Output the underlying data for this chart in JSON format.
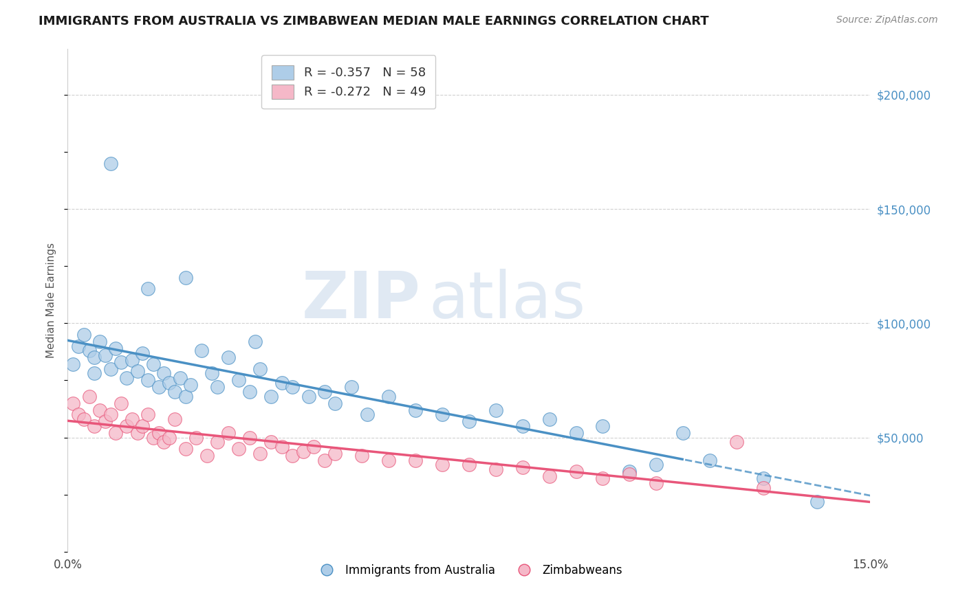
{
  "title": "IMMIGRANTS FROM AUSTRALIA VS ZIMBABWEAN MEDIAN MALE EARNINGS CORRELATION CHART",
  "source": "Source: ZipAtlas.com",
  "ylabel": "Median Male Earnings",
  "xlim": [
    0.0,
    0.15
  ],
  "ylim": [
    0,
    220000
  ],
  "y_ticks": [
    0,
    50000,
    100000,
    150000,
    200000
  ],
  "legend_label1": "R = -0.357   N = 58",
  "legend_label2": "R = -0.272   N = 49",
  "legend_label3": "Immigrants from Australia",
  "legend_label4": "Zimbabweans",
  "color_blue": "#aecde8",
  "color_pink": "#f5b8c8",
  "line_blue": "#4a90c4",
  "line_pink": "#e8567a",
  "watermark_zip": "ZIP",
  "watermark_atlas": "atlas",
  "aus_scatter_x": [
    0.001,
    0.002,
    0.003,
    0.004,
    0.005,
    0.005,
    0.006,
    0.007,
    0.008,
    0.009,
    0.01,
    0.011,
    0.012,
    0.013,
    0.014,
    0.015,
    0.016,
    0.017,
    0.018,
    0.019,
    0.02,
    0.021,
    0.022,
    0.023,
    0.025,
    0.027,
    0.028,
    0.03,
    0.032,
    0.034,
    0.036,
    0.038,
    0.04,
    0.042,
    0.045,
    0.048,
    0.05,
    0.053,
    0.056,
    0.06,
    0.065,
    0.07,
    0.075,
    0.08,
    0.085,
    0.09,
    0.095,
    0.1,
    0.105,
    0.11,
    0.115,
    0.12,
    0.13,
    0.14,
    0.008,
    0.015,
    0.022,
    0.035
  ],
  "aus_scatter_y": [
    82000,
    90000,
    95000,
    88000,
    85000,
    78000,
    92000,
    86000,
    80000,
    89000,
    83000,
    76000,
    84000,
    79000,
    87000,
    75000,
    82000,
    72000,
    78000,
    74000,
    70000,
    76000,
    68000,
    73000,
    88000,
    78000,
    72000,
    85000,
    75000,
    70000,
    80000,
    68000,
    74000,
    72000,
    68000,
    70000,
    65000,
    72000,
    60000,
    68000,
    62000,
    60000,
    57000,
    62000,
    55000,
    58000,
    52000,
    55000,
    35000,
    38000,
    52000,
    40000,
    32000,
    22000,
    170000,
    115000,
    120000,
    92000
  ],
  "zim_scatter_x": [
    0.001,
    0.002,
    0.003,
    0.004,
    0.005,
    0.006,
    0.007,
    0.008,
    0.009,
    0.01,
    0.011,
    0.012,
    0.013,
    0.014,
    0.015,
    0.016,
    0.017,
    0.018,
    0.019,
    0.02,
    0.022,
    0.024,
    0.026,
    0.028,
    0.03,
    0.032,
    0.034,
    0.036,
    0.038,
    0.04,
    0.042,
    0.044,
    0.046,
    0.048,
    0.05,
    0.055,
    0.06,
    0.065,
    0.07,
    0.075,
    0.08,
    0.085,
    0.09,
    0.095,
    0.1,
    0.105,
    0.11,
    0.125,
    0.13
  ],
  "zim_scatter_y": [
    65000,
    60000,
    58000,
    68000,
    55000,
    62000,
    57000,
    60000,
    52000,
    65000,
    55000,
    58000,
    52000,
    55000,
    60000,
    50000,
    52000,
    48000,
    50000,
    58000,
    45000,
    50000,
    42000,
    48000,
    52000,
    45000,
    50000,
    43000,
    48000,
    46000,
    42000,
    44000,
    46000,
    40000,
    43000,
    42000,
    40000,
    40000,
    38000,
    38000,
    36000,
    37000,
    33000,
    35000,
    32000,
    34000,
    30000,
    48000,
    28000
  ]
}
